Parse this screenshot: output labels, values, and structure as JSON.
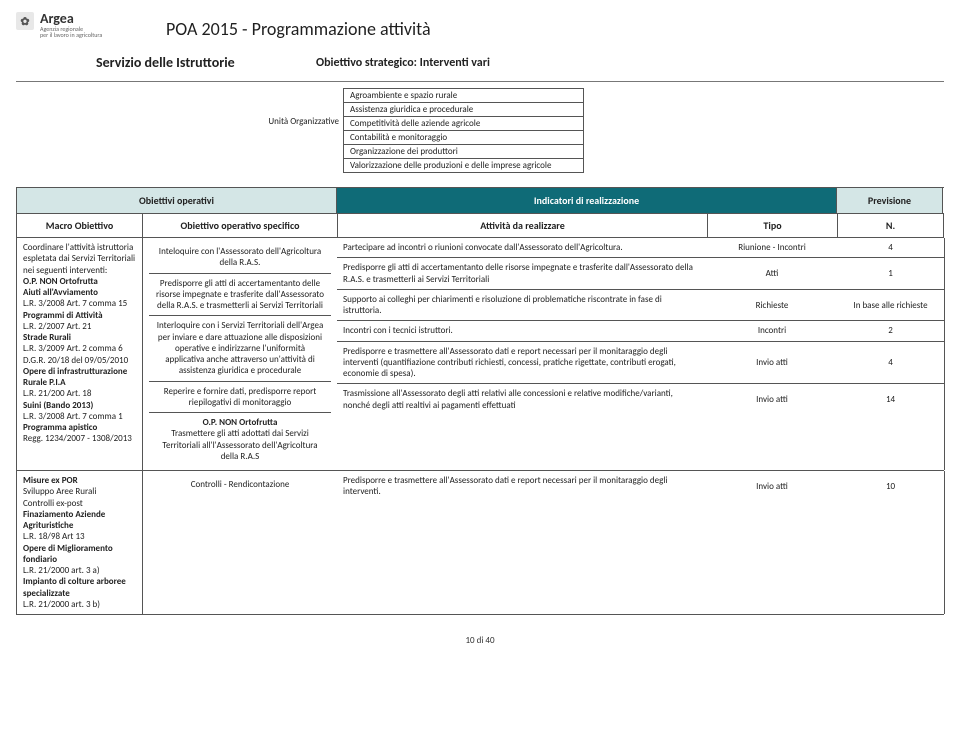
{
  "logo": {
    "name": "Argea",
    "sub1": "Agenzia regionale",
    "sub2": "per il lavoro in agricoltura"
  },
  "main_title": "POA 2015 - Programmazione  attività",
  "subheader": {
    "left": "Servizio delle Istruttorie",
    "right": "Obiettivo strategico: Interventi vari"
  },
  "units": {
    "label": "Unità Organizzative",
    "rows": [
      "Agroambiente e spazio rurale",
      "Assistenza giuridica e procedurale",
      "Competitività delle aziende agricole",
      "Contabilità e monitoraggio",
      "Organizzazione dei produttori",
      "Valorizzazione delle produzioni e delle imprese agricole"
    ]
  },
  "band": {
    "obj_op": "Obiettivi operativi",
    "ind": "Indicatori di realizzazione",
    "prev": "Previsione"
  },
  "colheads": {
    "macro": "Macro Obiettivo",
    "spec": "Obiettivo operativo specifico",
    "att": "Attività da realizzare",
    "tipo": "Tipo",
    "n": "N."
  },
  "rows": [
    {
      "macro_html": "Coordinare l'attività istruttoria espletata dai Servizi Territoriali nei seguenti interventi:\n<b>O.P. NON Ortofrutta</b>\n<b>Aiuti all'Avviamento</b>\n L.R. 3/2008 Art. 7 comma 15\n<b>Programmi di Attività</b>\nL.R. 2/2007 Art. 21\n<b>Strade Rurali</b>\nL.R. 3/2009 Art. 2 comma 6\nD.G.R. 20/18 del 09/05/2010\n<b>Opere di infrastrutturazione Rurale P.I.A</b>\nL.R. 21/200 Art. 18\n<b>Suini (Bando 2013)</b>\nL.R. 3/2008 Art. 7 comma 1\n<b>Programma apistico</b>\nRegg. 1234/2007 - 1308/2013",
      "spec_items": [
        "Inteloquire con l'Assessorato dell'Agricoltura della R.A.S.",
        "Predisporre gli atti di accertamentanto delle risorse impegnate e trasferite dall'Assessorato della R.A.S. e trasmetterli ai Servizi Territoriali",
        "Interloquire con i Servizi Territoriali dell'Argea per inviare e dare attuazione alle disposizioni operative e indirizzarne l'uniformità applicativa anche attraverso un'attività di assistenza giuridica e procedurale",
        "Reperire  e fornire dati, predisporre report riepilogativi di monitoraggio",
        "<b>O.P. NON Ortofrutta</b>\nTrasmettere gli atti adottati dai Servizi Territoriali all'l'Assessorato dell'Agricoltura della R.A.S"
      ],
      "att_rows": [
        {
          "text": "Partecipare ad incontri o riunioni convocate dall'Assessorato dell'Agricoltura.",
          "tipo": "Riunione - Incontri",
          "n": "4"
        },
        {
          "text": "Predisporre gli atti di accertamentanto delle risorse impegnate e trasferite dall'Assessorato della R.A.S. e trasmetterli ai Servizi Territoriali",
          "tipo": "Atti",
          "n": "1"
        },
        {
          "text": "Supporto ai colleghi per chiarimenti e risoluzione di problematiche riscontrate in fase di istruttoria.",
          "tipo": "Richieste",
          "n": "In base alle richieste"
        },
        {
          "text": "Incontri con i tecnici istruttori.",
          "tipo": "Incontri",
          "n": "2"
        },
        {
          "text": "Predisporre e trasmettere all'Assessorato dati e report necessari per il monitaraggio degli interventi (quantifiazione contributi richiesti, concessi, pratiche rigettate, contributi erogati, economie di spesa).",
          "tipo": "Invio atti",
          "n": "4"
        },
        {
          "text": "Trasmissione all'Assessorato degli atti relativi alle concessioni e relative modifiche/varianti, nonché degli atti realtivi ai pagamenti effettuati",
          "tipo": "Invio atti",
          "n": "14"
        }
      ]
    },
    {
      "macro_html": "<b>Misure ex POR</b>\nSviluppo Aree Rurali\nControlli ex-post\n<b>Finaziamento Aziende Agrituristiche</b>\nL.R. 18/98 Art 13\n<b>Opere di Miglioramento fondiario</b>\nL.R. 21/2000 art. 3 a)\n<b>Impianto di colture arboree specializzate</b>\nL.R. 21/2000 art. 3 b)",
      "spec_items": [
        "Controlli - Rendicontazione"
      ],
      "att_rows": [
        {
          "text": "Predisporre e trasmettere all'Assessorato dati e report necessari per il monitaraggio degli interventi.",
          "tipo": "Invio atti",
          "n": "10"
        }
      ]
    }
  ],
  "footer": "10 di 40"
}
